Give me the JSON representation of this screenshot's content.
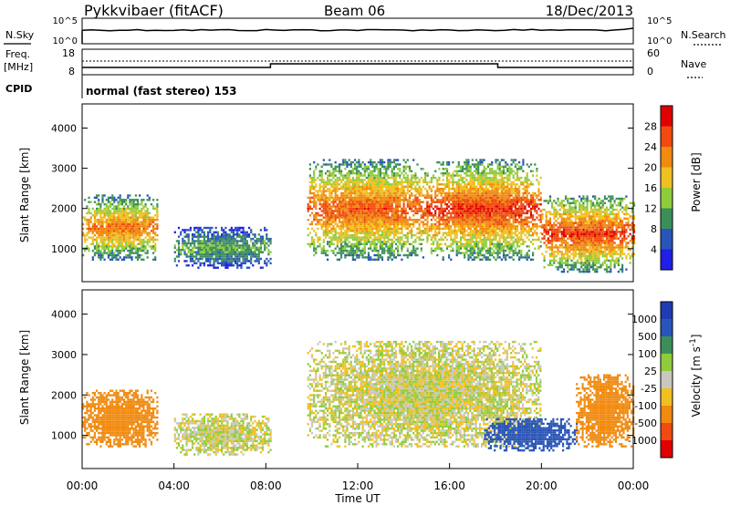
{
  "header": {
    "station": "Pykkvibaer (fitACF)",
    "beam": "Beam 06",
    "date": "18/Dec/2013"
  },
  "status_panels": {
    "nsky_label": "N.Sky",
    "nsky_ticks": [
      "10^5",
      "10^0"
    ],
    "nsearch_label": "N.Search",
    "nsearch_ticks": [
      "10^5",
      "10^0"
    ],
    "freq_label": "Freq.",
    "freq_unit": "[MHz]",
    "freq_ticks": [
      "18",
      "8"
    ],
    "nave_label": "Nave",
    "nave_ticks": [
      "60",
      "0"
    ],
    "cpid_label": "CPID",
    "cpid_text": "normal (fast stereo) 153"
  },
  "chart_data": [
    {
      "type": "heatmap",
      "panel": "power",
      "ylabel": "Slant Range [km]",
      "ylim": [
        180,
        4600
      ],
      "yticks": [
        1000,
        2000,
        3000,
        4000
      ],
      "xlim_hours": [
        0,
        24
      ],
      "colorbar_label": "Power [dB]",
      "colorbar_ticks": [
        "28",
        "24",
        "20",
        "16",
        "12",
        "8",
        "4"
      ],
      "colorbar_colors": [
        "#1f1fe6",
        "#2a55b8",
        "#3c8f5a",
        "#8fcc3c",
        "#f0c020",
        "#f08a10",
        "#f04a10",
        "#e00000"
      ],
      "echo_regions": [
        {
          "t0": 0.0,
          "t1": 3.3,
          "r0": 700,
          "r1": 2300,
          "peak_dB": 24
        },
        {
          "t0": 4.0,
          "t1": 8.2,
          "r0": 500,
          "r1": 1500,
          "peak_dB": 12
        },
        {
          "t0": 9.8,
          "t1": 15.0,
          "r0": 700,
          "r1": 3200,
          "peak_dB": 26
        },
        {
          "t0": 15.0,
          "t1": 20.0,
          "r0": 700,
          "r1": 3200,
          "peak_dB": 28
        },
        {
          "t0": 20.0,
          "t1": 24.0,
          "r0": 400,
          "r1": 2300,
          "peak_dB": 28
        }
      ]
    },
    {
      "type": "heatmap",
      "panel": "velocity",
      "ylabel": "Slant Range [km]",
      "ylim": [
        180,
        4600
      ],
      "yticks": [
        1000,
        2000,
        3000,
        4000
      ],
      "xlim_hours": [
        0,
        24
      ],
      "xlabel": "Time UT",
      "xticks": [
        "00:00",
        "04:00",
        "08:00",
        "12:00",
        "16:00",
        "20:00",
        "00:00"
      ],
      "colorbar_label": "Velocity [m s",
      "colorbar_unit_sup": "-1",
      "colorbar_unit_tail": "]",
      "colorbar_ticks": [
        "1000",
        "500",
        "100",
        "25",
        "-25",
        "-100",
        "-500",
        "-1000"
      ],
      "colorbar_colors": [
        "#e00000",
        "#f04a10",
        "#f08a10",
        "#f0c020",
        "#c8c8c0",
        "#8fcc3c",
        "#3c8f5a",
        "#2a55b8",
        "#1f3cb0"
      ],
      "echo_regions": [
        {
          "t0": 0.0,
          "t1": 3.3,
          "r0": 700,
          "r1": 2100,
          "v": -300
        },
        {
          "t0": 4.0,
          "t1": 8.2,
          "r0": 500,
          "r1": 1500,
          "v": 0
        },
        {
          "t0": 9.8,
          "t1": 20.0,
          "r0": 700,
          "r1": 3300,
          "v": 0
        },
        {
          "t0": 17.5,
          "t1": 21.5,
          "r0": 600,
          "r1": 1400,
          "v": 600
        },
        {
          "t0": 21.5,
          "t1": 24.0,
          "r0": 700,
          "r1": 2500,
          "v": -300
        }
      ]
    }
  ]
}
